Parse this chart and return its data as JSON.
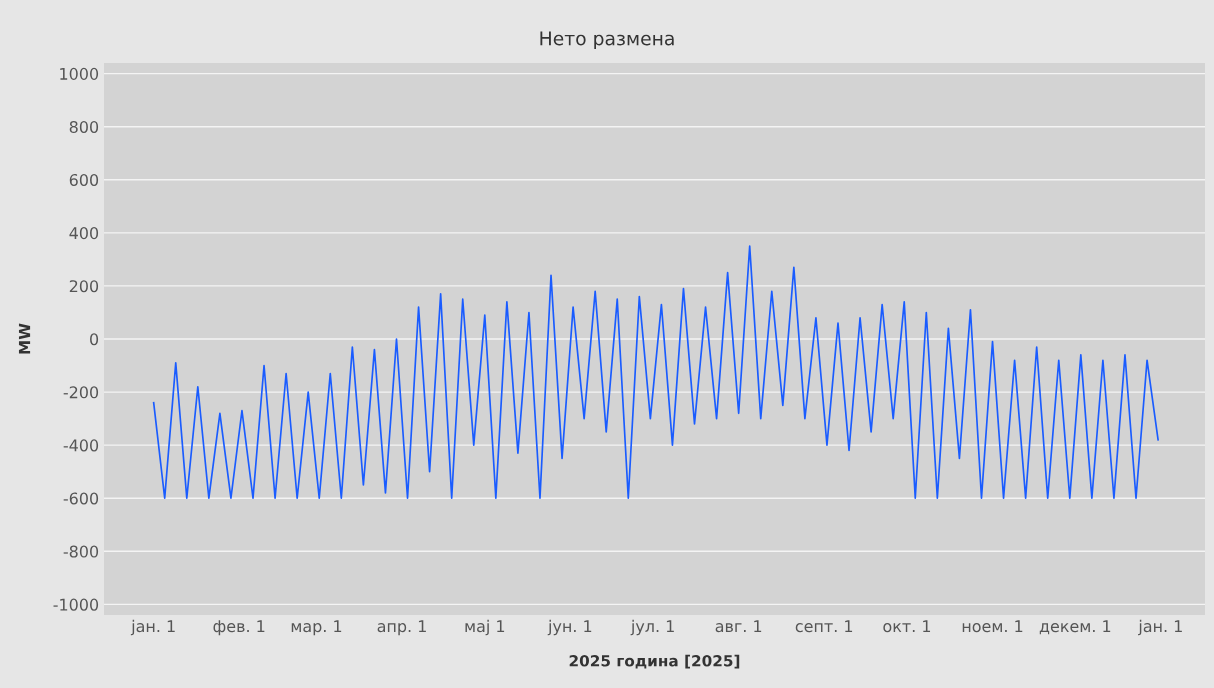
{
  "chart_data": {
    "type": "line",
    "title": "Нето размена",
    "xlabel": "2025 година [2025]",
    "ylabel": "MW",
    "x": [
      "2025-01-01",
      "2025-01-05",
      "2025-01-09",
      "2025-01-13",
      "2025-01-17",
      "2025-01-21",
      "2025-01-25",
      "2025-01-29",
      "2025-02-02",
      "2025-02-06",
      "2025-02-10",
      "2025-02-14",
      "2025-02-18",
      "2025-02-22",
      "2025-02-26",
      "2025-03-02",
      "2025-03-06",
      "2025-03-10",
      "2025-03-14",
      "2025-03-18",
      "2025-03-22",
      "2025-03-26",
      "2025-03-30",
      "2025-04-03",
      "2025-04-07",
      "2025-04-11",
      "2025-04-15",
      "2025-04-19",
      "2025-04-23",
      "2025-04-27",
      "2025-05-01",
      "2025-05-05",
      "2025-05-09",
      "2025-05-13",
      "2025-05-17",
      "2025-05-21",
      "2025-05-25",
      "2025-05-29",
      "2025-06-02",
      "2025-06-06",
      "2025-06-10",
      "2025-06-14",
      "2025-06-18",
      "2025-06-22",
      "2025-06-26",
      "2025-06-30",
      "2025-07-04",
      "2025-07-08",
      "2025-07-12",
      "2025-07-16",
      "2025-07-20",
      "2025-07-24",
      "2025-07-28",
      "2025-08-01",
      "2025-08-05",
      "2025-08-09",
      "2025-08-13",
      "2025-08-17",
      "2025-08-21",
      "2025-08-25",
      "2025-08-29",
      "2025-09-02",
      "2025-09-06",
      "2025-09-10",
      "2025-09-14",
      "2025-09-18",
      "2025-09-22",
      "2025-09-26",
      "2025-09-30",
      "2025-10-04",
      "2025-10-08",
      "2025-10-12",
      "2025-10-16",
      "2025-10-20",
      "2025-10-24",
      "2025-10-28",
      "2025-11-01",
      "2025-11-05",
      "2025-11-09",
      "2025-11-13",
      "2025-11-17",
      "2025-11-21",
      "2025-11-25",
      "2025-11-29",
      "2025-12-03",
      "2025-12-07",
      "2025-12-11",
      "2025-12-15",
      "2025-12-19",
      "2025-12-23",
      "2025-12-27",
      "2025-12-31"
    ],
    "series": [
      {
        "color": "#1a5cff",
        "values": [
          -240,
          -600,
          -90,
          -600,
          -180,
          -600,
          -280,
          -600,
          -270,
          -600,
          -100,
          -600,
          -130,
          -600,
          -200,
          -600,
          -130,
          -600,
          -30,
          -550,
          -40,
          -580,
          0,
          -600,
          120,
          -500,
          170,
          -600,
          150,
          -400,
          90,
          -600,
          140,
          -430,
          100,
          -600,
          240,
          -450,
          120,
          -300,
          180,
          -350,
          150,
          -600,
          160,
          -300,
          130,
          -400,
          190,
          -320,
          120,
          -300,
          250,
          -280,
          350,
          -300,
          180,
          -250,
          270,
          -300,
          80,
          -400,
          60,
          -420,
          80,
          -350,
          130,
          -300,
          140,
          -600,
          100,
          -600,
          40,
          -450,
          110,
          -600,
          -10,
          -600,
          -80,
          -600,
          -30,
          -600,
          -80,
          -600,
          -60,
          -600,
          -80,
          -600,
          -60,
          -600,
          -80,
          -380
        ]
      }
    ],
    "xlim": [
      "2024-12-14",
      "2026-01-17"
    ],
    "xticks": [
      {
        "value": "2025-01-01",
        "label": "јан. 1"
      },
      {
        "value": "2025-02-01",
        "label": "фев. 1"
      },
      {
        "value": "2025-03-01",
        "label": "мар. 1"
      },
      {
        "value": "2025-04-01",
        "label": "апр. 1"
      },
      {
        "value": "2025-05-01",
        "label": "мај 1"
      },
      {
        "value": "2025-06-01",
        "label": "јун. 1"
      },
      {
        "value": "2025-07-01",
        "label": "јул. 1"
      },
      {
        "value": "2025-08-01",
        "label": "авг. 1"
      },
      {
        "value": "2025-09-01",
        "label": "септ. 1"
      },
      {
        "value": "2025-10-01",
        "label": "окт. 1"
      },
      {
        "value": "2025-11-01",
        "label": "ноем. 1"
      },
      {
        "value": "2025-12-01",
        "label": "декем. 1"
      },
      {
        "value": "2026-01-01",
        "label": "јан. 1"
      }
    ],
    "ylim": [
      -1040,
      1040
    ],
    "yticks": [
      -1000,
      -800,
      -600,
      -400,
      -200,
      0,
      200,
      400,
      600,
      800,
      1000
    ],
    "grid": "y",
    "legend": false,
    "marker": "none",
    "line_style": "solid"
  }
}
